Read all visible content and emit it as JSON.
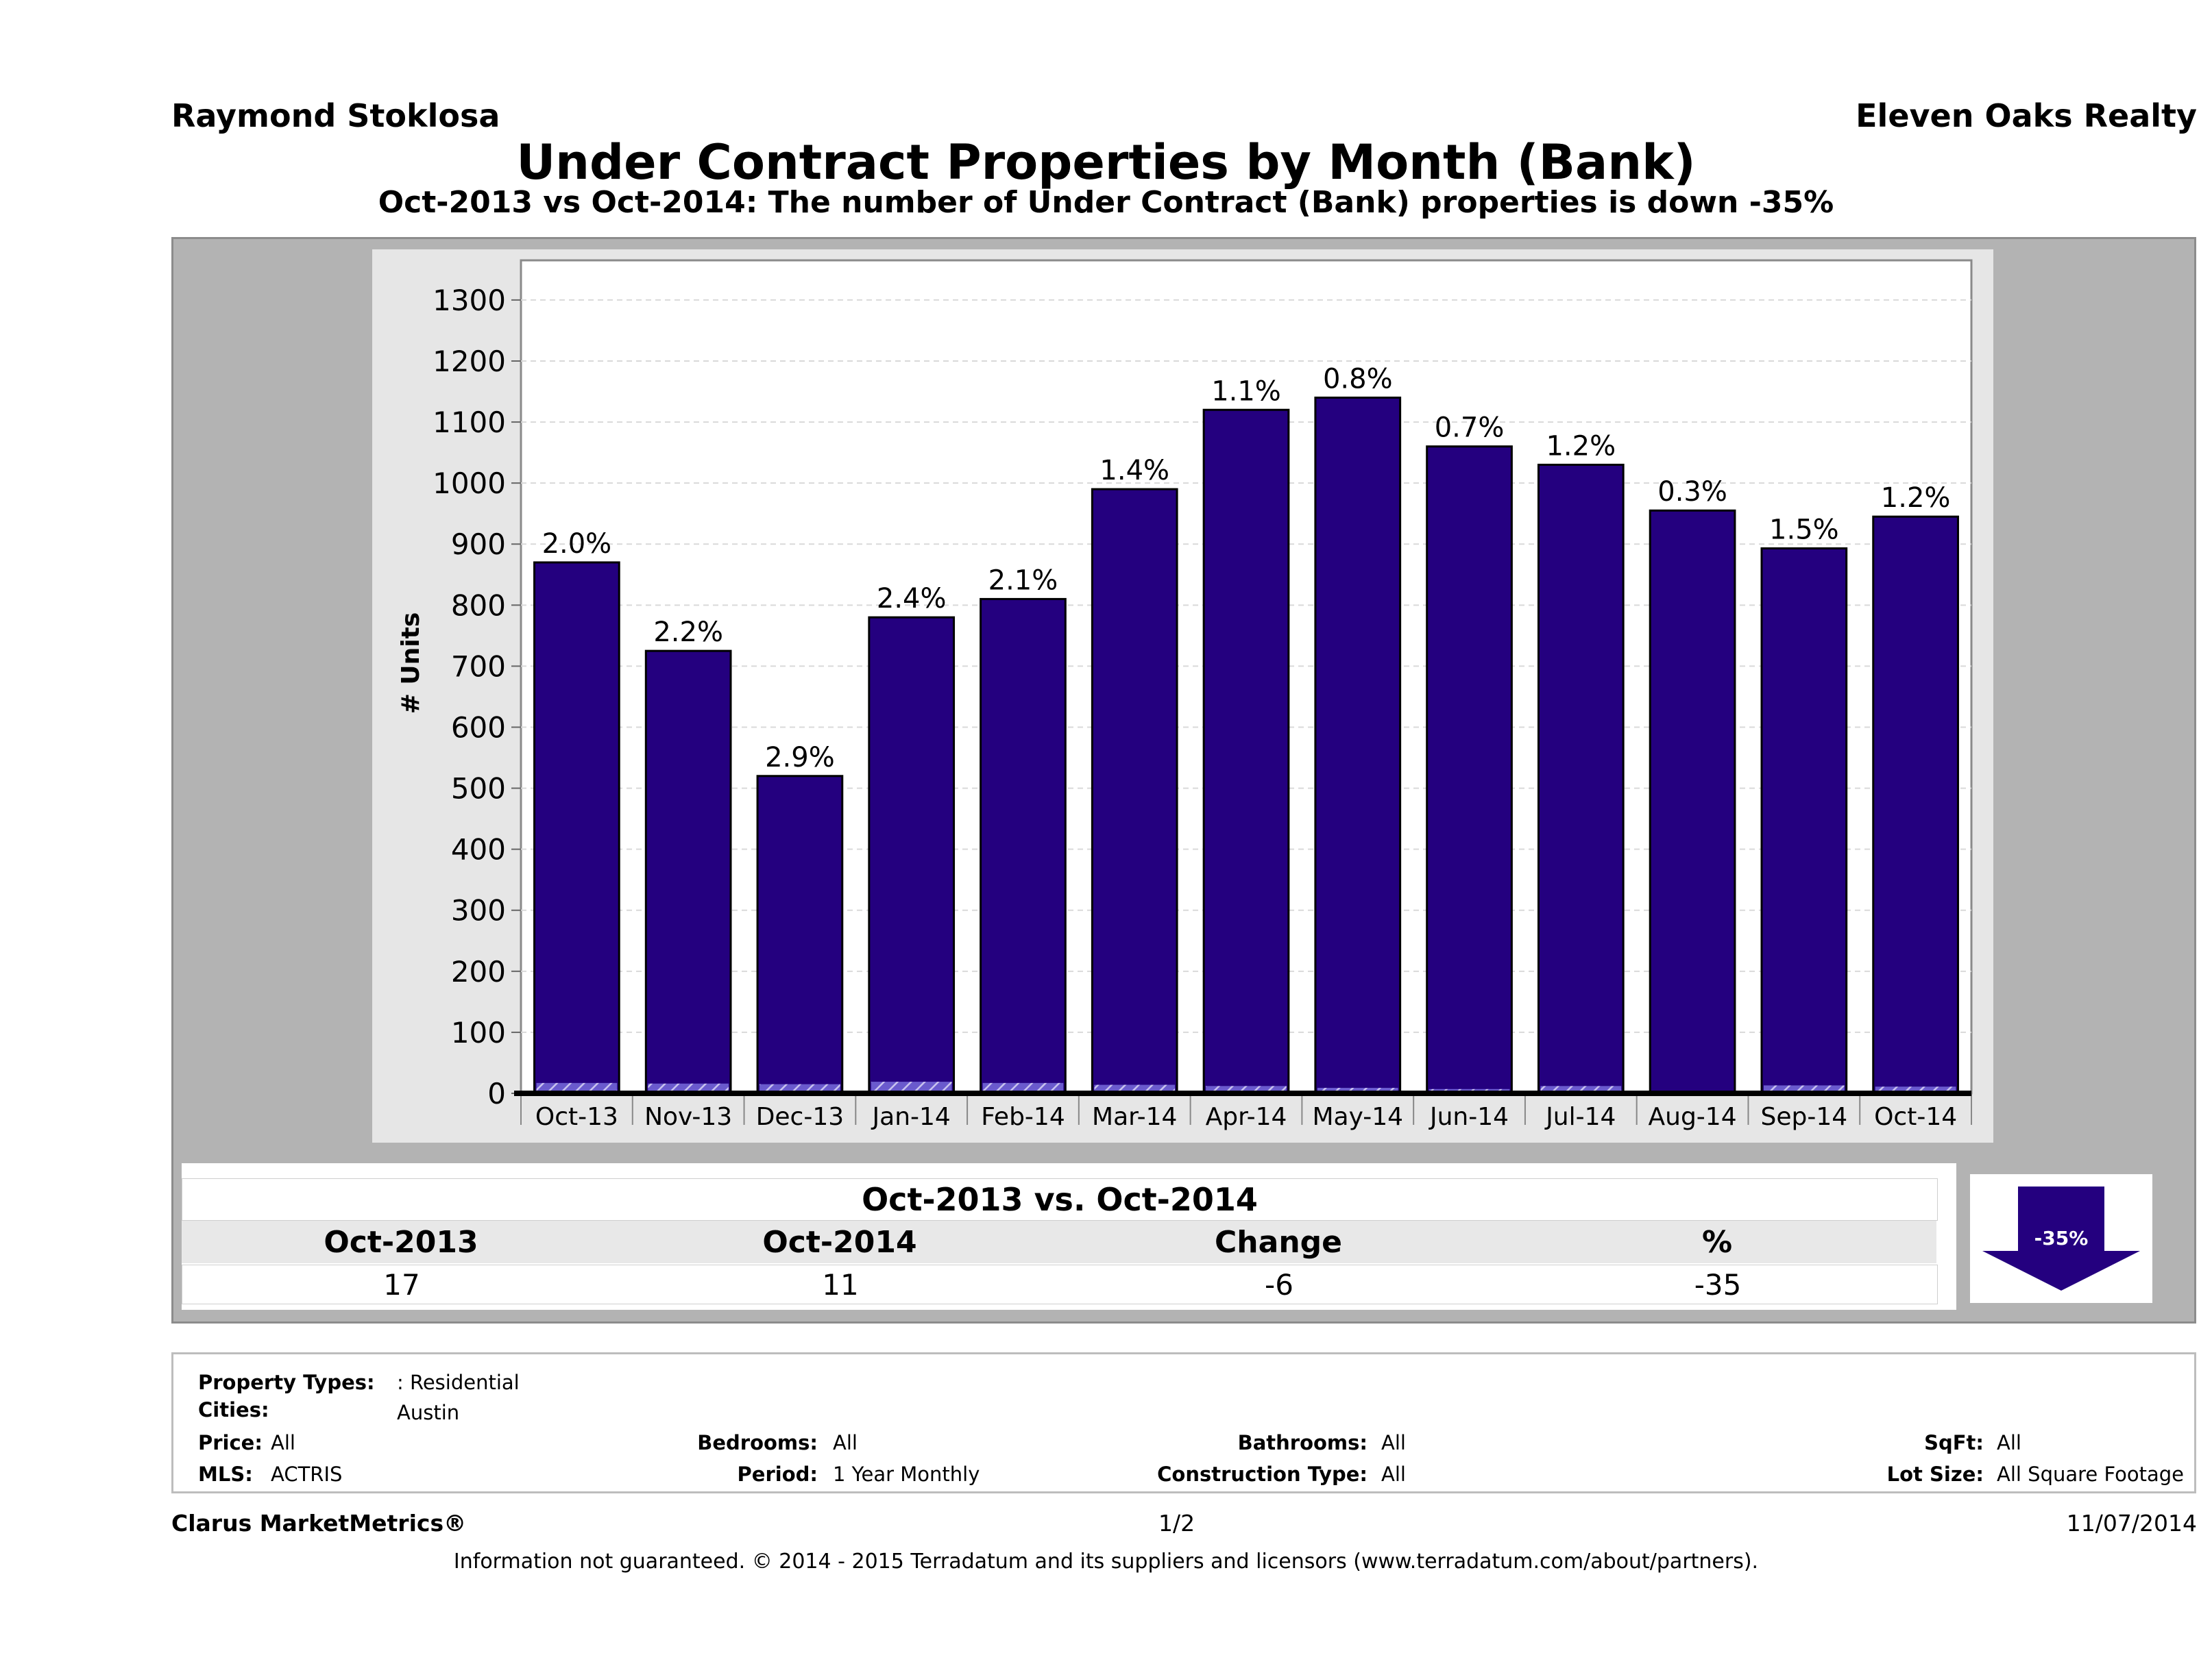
{
  "header": {
    "agent_name": "Raymond Stoklosa",
    "brokerage": "Eleven Oaks Realty",
    "title": "Under Contract Properties by Month (Bank)",
    "subtitle": "Oct-2013 vs Oct-2014: The number of Under Contract (Bank)  properties is down -35%"
  },
  "chart_data": {
    "type": "bar",
    "title": "",
    "xlabel": "",
    "ylabel": "# Units",
    "ylim": [
      0,
      1300
    ],
    "yticks": [
      0,
      100,
      200,
      300,
      400,
      500,
      600,
      700,
      800,
      900,
      1000,
      1100,
      1200,
      1300
    ],
    "grid": true,
    "categories": [
      "Oct-13",
      "Nov-13",
      "Dec-13",
      "Jan-14",
      "Feb-14",
      "Mar-14",
      "Apr-14",
      "May-14",
      "Jun-14",
      "Jul-14",
      "Aug-14",
      "Sep-14",
      "Oct-14"
    ],
    "series": [
      {
        "values": [
          870,
          725,
          520,
          780,
          810,
          990,
          1120,
          1140,
          1060,
          1030,
          955,
          893,
          945
        ]
      },
      {
        "values": [
          17,
          16,
          15,
          19,
          17,
          14,
          12,
          9,
          7,
          12,
          3,
          13,
          11
        ]
      }
    ],
    "bar_labels": [
      "2.0%",
      "2.2%",
      "2.9%",
      "2.4%",
      "2.1%",
      "1.4%",
      "1.1%",
      "0.8%",
      "0.7%",
      "1.2%",
      "0.3%",
      "1.5%",
      "1.2%"
    ],
    "colors": {
      "bar": "#24007f",
      "bank": "#6a5acd",
      "plot_bg": "#ffffff",
      "grid": "#d9d9d9"
    }
  },
  "stats": {
    "title": "Oct-2013 vs. Oct-2014",
    "headers": [
      "Oct-2013",
      "Oct-2014",
      "Change",
      "%"
    ],
    "values": [
      "17",
      "11",
      "-6",
      "-35"
    ],
    "badge": "-35%"
  },
  "criteria": {
    "property_types_label": "Property Types:",
    "property_types_value": ": Residential",
    "cities_label": "Cities:",
    "cities_value": "Austin",
    "price_label": "Price:",
    "price_value": "All",
    "mls_label": "MLS:",
    "mls_value": "ACTRIS",
    "bedrooms_label": "Bedrooms:",
    "bedrooms_value": "All",
    "period_label": "Period:",
    "period_value": "1 Year Monthly",
    "bathrooms_label": "Bathrooms:",
    "bathrooms_value": "All",
    "construction_label": "Construction Type:",
    "construction_value": "All",
    "sqft_label": "SqFt:",
    "sqft_value": "All",
    "lot_label": "Lot Size:",
    "lot_value": "All Square Footage"
  },
  "footer": {
    "brand": "Clarus MarketMetrics®",
    "page": "1/2",
    "date": "11/07/2014",
    "disclaimer": "Information not guaranteed. © 2014 - 2015 Terradatum and its suppliers and licensors (www.terradatum.com/about/partners)."
  }
}
